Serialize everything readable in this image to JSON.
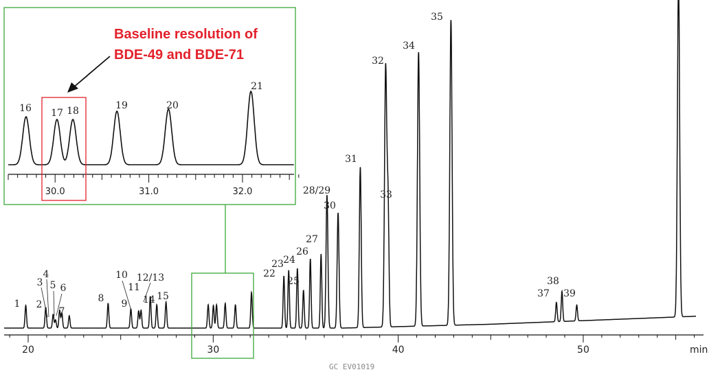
{
  "chart_data": [
    {
      "type": "line",
      "title": "",
      "xlabel": "",
      "x_unit_label": "min.",
      "xlim": [
        18.7,
        56.5
      ],
      "x_ticks": [
        20,
        30,
        40,
        50
      ],
      "ylabel": "",
      "peaks": [
        {
          "label": "1",
          "rt": 19.87,
          "h": 33
        },
        {
          "label": "2",
          "rt": 20.95,
          "h": 30
        },
        {
          "label": "3",
          "rt": 21.35,
          "h": 20
        },
        {
          "label": "4",
          "rt": 21.48,
          "h": 12
        },
        {
          "label": "5",
          "rt": 21.7,
          "h": 26
        },
        {
          "label": "6",
          "rt": 21.82,
          "h": 22
        },
        {
          "label": "7",
          "rt": 22.22,
          "h": 18
        },
        {
          "label": "8",
          "rt": 24.32,
          "h": 36
        },
        {
          "label": "9",
          "rt": 25.55,
          "h": 28
        },
        {
          "label": "10",
          "rt": 25.97,
          "h": 25
        },
        {
          "label": "11",
          "rt": 26.1,
          "h": 26
        },
        {
          "label": "12/13",
          "rt": 26.6,
          "h": 46
        },
        {
          "label": "14",
          "rt": 26.95,
          "h": 34
        },
        {
          "label": "15",
          "rt": 27.45,
          "h": 38
        },
        {
          "label": "16",
          "rt": 29.73,
          "h": 34
        },
        {
          "label": "17",
          "rt": 30.01,
          "h": 33
        },
        {
          "label": "18",
          "rt": 30.18,
          "h": 34
        },
        {
          "label": "19",
          "rt": 30.65,
          "h": 36
        },
        {
          "label": "20",
          "rt": 31.2,
          "h": 34
        },
        {
          "label": "21",
          "rt": 32.07,
          "h": 52
        },
        {
          "label": "22",
          "rt": 33.82,
          "h": 76
        },
        {
          "label": "23",
          "rt": 34.08,
          "h": 84
        },
        {
          "label": "24",
          "rt": 34.55,
          "h": 87
        },
        {
          "label": "25",
          "rt": 34.88,
          "h": 55
        },
        {
          "label": "26",
          "rt": 35.25,
          "h": 101
        },
        {
          "label": "27",
          "rt": 35.83,
          "h": 108
        },
        {
          "label": "28/29",
          "rt": 36.15,
          "h": 194
        },
        {
          "label": "30",
          "rt": 36.75,
          "h": 168
        },
        {
          "label": "31",
          "rt": 37.95,
          "h": 234
        },
        {
          "label": "32",
          "rt": 39.32,
          "h": 378
        },
        {
          "label": "33",
          "rt": 39.45,
          "h": 172
        },
        {
          "label": "34",
          "rt": 41.1,
          "h": 399
        },
        {
          "label": "35",
          "rt": 42.85,
          "h": 445
        },
        {
          "label": "37",
          "rt": 48.55,
          "h": 28
        },
        {
          "label": "38",
          "rt": 48.85,
          "h": 44
        },
        {
          "label": "39",
          "rt": 49.65,
          "h": 23
        },
        {
          "label": "",
          "rt": 55.15,
          "h": 490
        }
      ]
    },
    {
      "type": "line",
      "title": "",
      "xlim": [
        29.5,
        32.55
      ],
      "x_ticks": [
        30.0,
        31.0,
        32.0
      ],
      "x_tick_labels": [
        "30.0",
        "31.0",
        "32.0"
      ],
      "peaks": [
        {
          "label": "16",
          "rt": 29.69,
          "h": 70
        },
        {
          "label": "17",
          "rt": 30.02,
          "h": 66
        },
        {
          "label": "18",
          "rt": 30.19,
          "h": 66
        },
        {
          "label": "19",
          "rt": 30.66,
          "h": 78
        },
        {
          "label": "20",
          "rt": 31.21,
          "h": 81
        },
        {
          "label": "21",
          "rt": 32.09,
          "h": 107
        }
      ]
    }
  ],
  "callout": {
    "line1": "Baseline resolution of",
    "line2": "BDE-49 and BDE-71"
  },
  "footer": "GC EV01019",
  "colors": {
    "trace": "#111111",
    "inset_frame": "#3aa83a",
    "callout_red": "#e3212b"
  }
}
